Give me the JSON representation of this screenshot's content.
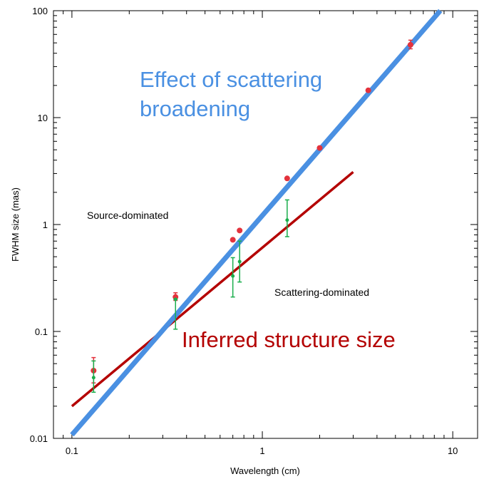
{
  "chart_data": {
    "type": "scatter",
    "xscale": "log",
    "yscale": "log",
    "xlim": [
      0.08,
      13.5
    ],
    "ylim": [
      0.01,
      100
    ],
    "xlabel": "Wavelength (cm)",
    "ylabel": "FWHM size (mas)",
    "x_ticks": [
      0.1,
      1,
      10
    ],
    "x_tick_labels": [
      "0.1",
      "1",
      "10"
    ],
    "y_ticks": [
      0.01,
      0.1,
      1,
      10,
      100
    ],
    "y_tick_labels": [
      "0.01",
      "0.1",
      "1",
      "10",
      "100"
    ],
    "grid": false,
    "annotations": {
      "scattering_broadening": [
        "Effect of scattering",
        "broadening"
      ],
      "inferred_structure": "Inferred structure size",
      "source_dominated": "Source-dominated",
      "scattering_dominated": "Scattering-dominated"
    },
    "colors": {
      "scattering_line": "#4a90e2",
      "structure_line": "#b40000",
      "observed_points": "#e3323c",
      "intrinsic_points": "#1aae4c",
      "scattering_text": "#4a90e2",
      "structure_text": "#b40000"
    },
    "series": [
      {
        "style": "line",
        "x": [
          0.1,
          8.6
        ],
        "y": [
          0.0108,
          100
        ]
      },
      {
        "style": "line",
        "x": [
          0.1,
          3.0
        ],
        "y": [
          0.02,
          3.1
        ]
      },
      {
        "style": "points-errorbar",
        "points": [
          {
            "x": 0.13,
            "y": 0.043,
            "ylo": 0.033,
            "yhi": 0.057
          },
          {
            "x": 0.35,
            "y": 0.21,
            "ylo": 0.195,
            "yhi": 0.23
          },
          {
            "x": 0.7,
            "y": 0.72
          },
          {
            "x": 0.76,
            "y": 0.88
          },
          {
            "x": 1.35,
            "y": 2.7
          },
          {
            "x": 2.0,
            "y": 5.2
          },
          {
            "x": 3.6,
            "y": 18
          },
          {
            "x": 6.0,
            "y": 48,
            "ylo": 44,
            "yhi": 53
          }
        ]
      },
      {
        "style": "points-errorbar",
        "points": [
          {
            "x": 0.13,
            "y": 0.037,
            "ylo": 0.027,
            "yhi": 0.053
          },
          {
            "x": 0.35,
            "y": 0.2,
            "ylo": 0.105,
            "yhi": 0.2
          },
          {
            "x": 0.7,
            "y": 0.33,
            "ylo": 0.21,
            "yhi": 0.49
          },
          {
            "x": 0.76,
            "y": 0.45,
            "ylo": 0.29,
            "yhi": 0.7
          },
          {
            "x": 1.35,
            "y": 1.1,
            "ylo": 0.77,
            "yhi": 1.7
          }
        ]
      }
    ]
  }
}
